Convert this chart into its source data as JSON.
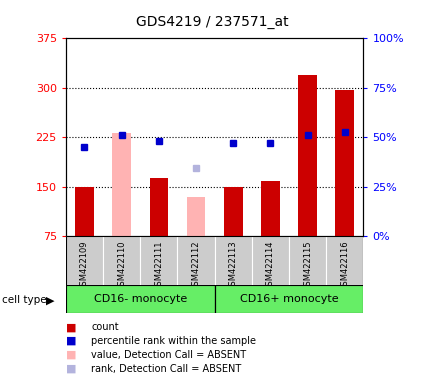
{
  "title": "GDS4219 / 237571_at",
  "samples": [
    "GSM422109",
    "GSM422110",
    "GSM422111",
    "GSM422112",
    "GSM422113",
    "GSM422114",
    "GSM422115",
    "GSM422116"
  ],
  "group_spans": [
    {
      "label": "CD16- monocyte",
      "start": 0,
      "end": 3
    },
    {
      "label": "CD16+ monocyte",
      "start": 4,
      "end": 7
    }
  ],
  "counts": [
    150,
    null,
    163,
    null,
    150,
    158,
    320,
    297
  ],
  "absent_values": [
    null,
    232,
    null,
    135,
    null,
    null,
    null,
    null
  ],
  "percentile_ranks": [
    210,
    228,
    220,
    null,
    217,
    217,
    228,
    233
  ],
  "absent_ranks": [
    null,
    null,
    null,
    178,
    null,
    null,
    null,
    null
  ],
  "ylim_left": [
    75,
    375
  ],
  "ylim_right": [
    0,
    100
  ],
  "yticks_left": [
    75,
    150,
    225,
    300,
    375
  ],
  "yticks_right": [
    0,
    25,
    50,
    75,
    100
  ],
  "ytick_labels_right": [
    "0%",
    "25%",
    "50%",
    "75%",
    "100%"
  ],
  "hgrid_lines": [
    150,
    225,
    300
  ],
  "bar_width": 0.5,
  "count_color": "#cc0000",
  "absent_value_color": "#ffb3b3",
  "percentile_color": "#0000cc",
  "absent_rank_color": "#b3b3dd",
  "sample_bg_color": "#cccccc",
  "group_color": "#66ee66",
  "legend_items": [
    {
      "color": "#cc0000",
      "label": "count"
    },
    {
      "color": "#0000cc",
      "label": "percentile rank within the sample"
    },
    {
      "color": "#ffb3b3",
      "label": "value, Detection Call = ABSENT"
    },
    {
      "color": "#b3b3dd",
      "label": "rank, Detection Call = ABSENT"
    }
  ]
}
